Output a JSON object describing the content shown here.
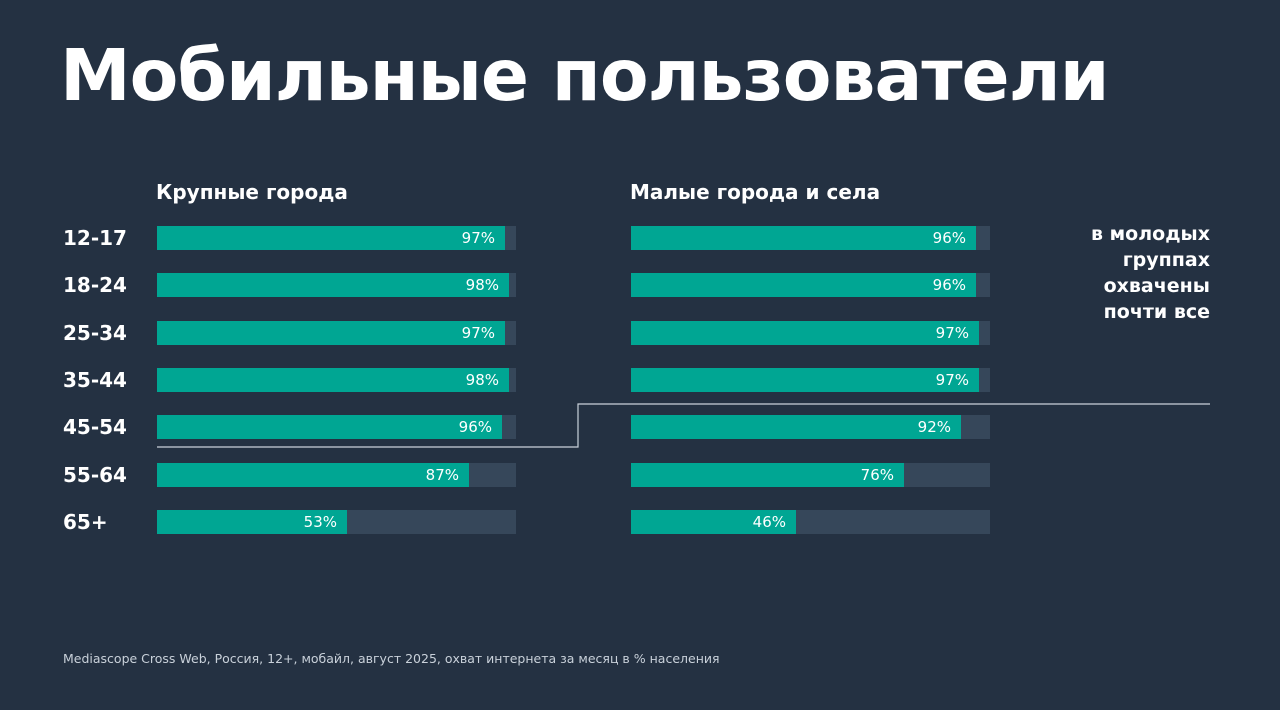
{
  "title": "Мобильные пользователи",
  "note_lines": [
    "в молодых",
    "группах",
    "охвачены",
    "почти все"
  ],
  "source": "Mediascope Cross Web, Россия, 12+, мобайл, август 2025, охват интернета за месяц в % населения",
  "colors": {
    "background": "#243142",
    "bar_fill": "#00a693",
    "bar_track": "#36475a",
    "divider": "#c9d1da"
  },
  "chart_data": [
    {
      "type": "bar",
      "orientation": "horizontal",
      "title": "Крупные города",
      "categories": [
        "12-17",
        "18-24",
        "25-34",
        "35-44",
        "45-54",
        "55-64",
        "65+"
      ],
      "values": [
        97,
        98,
        97,
        98,
        96,
        87,
        53
      ],
      "value_labels": [
        "97%",
        "98%",
        "97%",
        "98%",
        "96%",
        "87%",
        "53%"
      ],
      "xlim": [
        0,
        100
      ],
      "unit": "%"
    },
    {
      "type": "bar",
      "orientation": "horizontal",
      "title": "Малые города и села",
      "categories": [
        "12-17",
        "18-24",
        "25-34",
        "35-44",
        "45-54",
        "55-64",
        "65+"
      ],
      "values": [
        96,
        96,
        97,
        97,
        92,
        76,
        46
      ],
      "value_labels": [
        "96%",
        "96%",
        "97%",
        "97%",
        "92%",
        "76%",
        "46%"
      ],
      "xlim": [
        0,
        100
      ],
      "unit": "%"
    }
  ]
}
